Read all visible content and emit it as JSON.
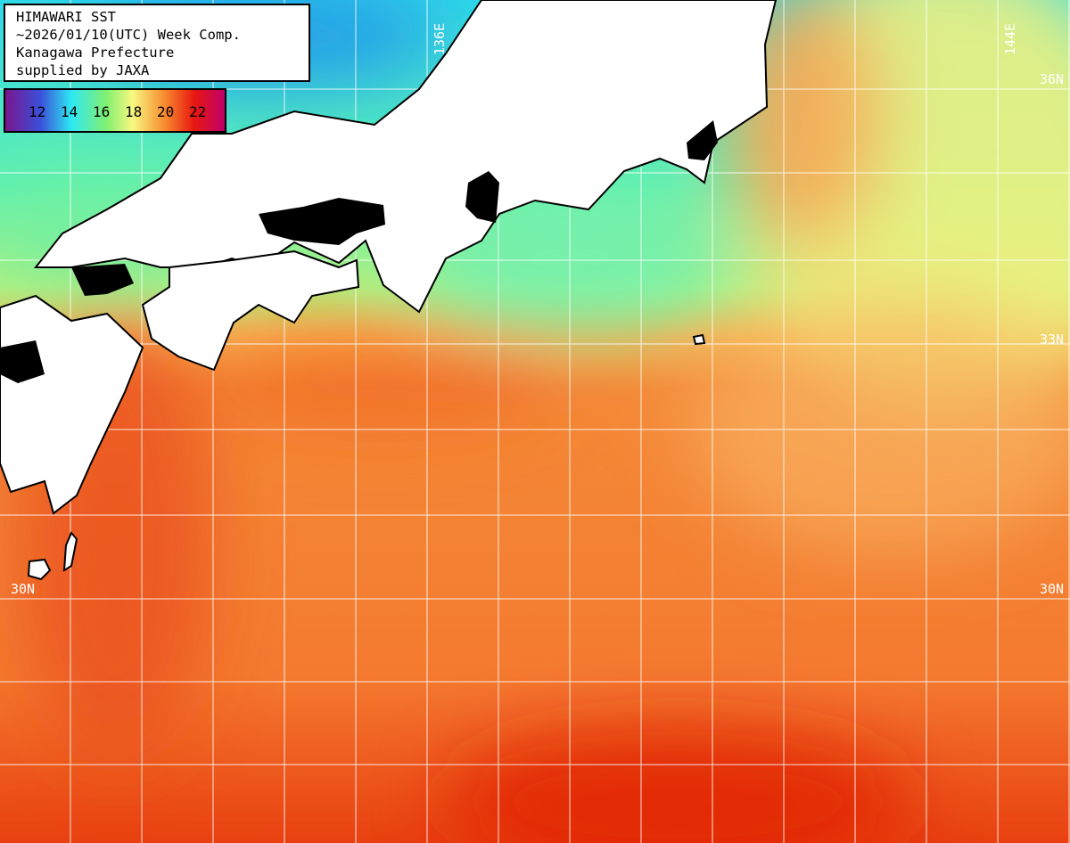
{
  "info": {
    "lines": [
      "HIMAWARI SST",
      "~2026/01/10(UTC) Week Comp.",
      "Kanagawa Prefecture",
      "supplied by JAXA"
    ]
  },
  "legend": {
    "ticks": [
      "12",
      "14",
      "16",
      "18",
      "20",
      "22"
    ],
    "colors": [
      "#7a168e",
      "#3a4fd8",
      "#2ee8f4",
      "#80f070",
      "#f8f880",
      "#f89030",
      "#e81810",
      "#c0006a"
    ]
  },
  "grid_labels": {
    "lon_136": "136E",
    "lon_144": "144E",
    "lat_36": "36N",
    "lat_33": "33N",
    "lat_30_left": "30N",
    "lat_30_right": "30N"
  },
  "colors": {
    "land": "#ffffff",
    "no_data": "#000000",
    "grid": "#ffffff"
  }
}
